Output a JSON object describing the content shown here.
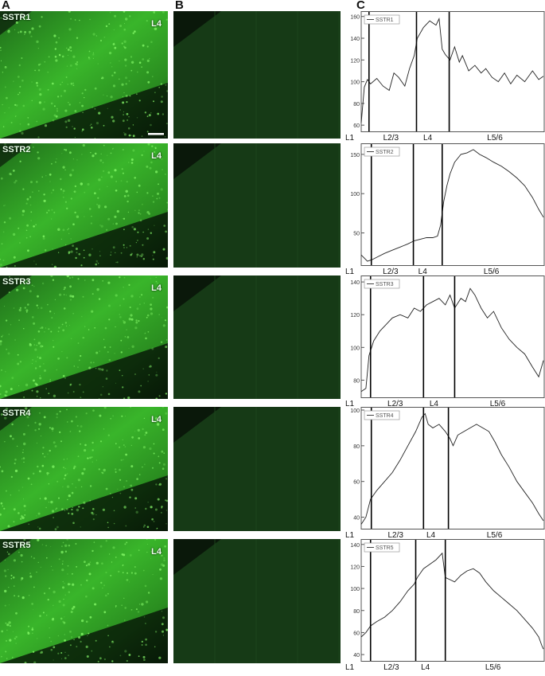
{
  "panel_labels": [
    "A",
    "B",
    "C"
  ],
  "layer_tag": "L4",
  "rows": [
    {
      "name": "SSTR1",
      "legend": "SSTR1",
      "ylim": [
        55,
        162
      ],
      "yticks": [
        60,
        80,
        100,
        120,
        140,
        160
      ],
      "layers": [
        "L1",
        "L2/3",
        "L4",
        "L5/6"
      ]
    },
    {
      "name": "SSTR2",
      "legend": "SSTR2",
      "ylim": [
        10,
        160
      ],
      "yticks": [
        50,
        100,
        150
      ],
      "layers": [
        "L1",
        "L2/3",
        "L4",
        "L5/6"
      ]
    },
    {
      "name": "SSTR3",
      "legend": "SSTR3",
      "ylim": [
        70,
        142
      ],
      "yticks": [
        80,
        100,
        120,
        140
      ],
      "layers": [
        "L1",
        "L2/3",
        "L4",
        "L5/6"
      ]
    },
    {
      "name": "SSTR4",
      "legend": "SSTR4",
      "ylim": [
        34,
        100
      ],
      "yticks": [
        40,
        60,
        80,
        100
      ],
      "layers": [
        "L1",
        "L2/3",
        "L4",
        "L5/6"
      ]
    },
    {
      "name": "SSTR5",
      "legend": "SSTR5",
      "ylim": [
        35,
        142
      ],
      "yticks": [
        40,
        60,
        80,
        100,
        120,
        140
      ],
      "layers": [
        "L1",
        "L2/3",
        "L4",
        "L5/6"
      ]
    }
  ],
  "chart_data": [
    {
      "type": "line",
      "series": [
        {
          "name": "SSTR1",
          "x": [
            0,
            4,
            8,
            12,
            20,
            28,
            36,
            42,
            48,
            56,
            62,
            68,
            72,
            80,
            88,
            96,
            100,
            104,
            108,
            114,
            120,
            126,
            130,
            138,
            146,
            154,
            160,
            168,
            176,
            184,
            192,
            200,
            210,
            220,
            228,
            234
          ],
          "values": [
            62,
            95,
            102,
            98,
            103,
            96,
            92,
            108,
            104,
            96,
            112,
            124,
            140,
            150,
            156,
            152,
            158,
            130,
            125,
            120,
            132,
            118,
            124,
            110,
            115,
            108,
            112,
            104,
            100,
            108,
            98,
            106,
            100,
            110,
            102,
            105
          ]
        }
      ],
      "boundaries_x": [
        10,
        71,
        113
      ],
      "xlim": [
        0,
        235
      ]
    },
    {
      "type": "line",
      "series": [
        {
          "name": "SSTR2",
          "x": [
            0,
            8,
            14,
            22,
            30,
            40,
            50,
            60,
            68,
            76,
            84,
            92,
            98,
            102,
            106,
            110,
            114,
            120,
            128,
            136,
            144,
            152,
            160,
            170,
            180,
            190,
            200,
            210,
            220,
            228,
            234
          ],
          "values": [
            22,
            14,
            16,
            20,
            24,
            28,
            32,
            36,
            40,
            42,
            44,
            44,
            46,
            60,
            90,
            110,
            125,
            140,
            150,
            152,
            156,
            150,
            146,
            140,
            135,
            128,
            120,
            110,
            95,
            80,
            70
          ]
        }
      ],
      "boundaries_x": [
        13,
        67,
        104
      ],
      "xlim": [
        0,
        235
      ]
    },
    {
      "type": "line",
      "series": [
        {
          "name": "SSTR3",
          "x": [
            0,
            6,
            10,
            16,
            24,
            32,
            40,
            50,
            60,
            68,
            76,
            84,
            92,
            100,
            108,
            114,
            120,
            128,
            134,
            140,
            146,
            154,
            162,
            170,
            180,
            190,
            200,
            210,
            220,
            228,
            234
          ],
          "values": [
            73,
            75,
            95,
            104,
            110,
            114,
            118,
            120,
            118,
            124,
            122,
            126,
            128,
            130,
            126,
            132,
            124,
            130,
            128,
            136,
            132,
            124,
            118,
            122,
            112,
            105,
            100,
            96,
            88,
            82,
            92
          ]
        }
      ],
      "boundaries_x": [
        12,
        80,
        120
      ],
      "xlim": [
        0,
        235
      ]
    },
    {
      "type": "line",
      "series": [
        {
          "name": "SSTR4",
          "x": [
            0,
            6,
            12,
            20,
            30,
            40,
            50,
            60,
            70,
            78,
            82,
            86,
            92,
            100,
            108,
            114,
            118,
            124,
            132,
            140,
            148,
            156,
            164,
            172,
            180,
            190,
            200,
            210,
            220,
            228,
            234
          ],
          "values": [
            36,
            40,
            50,
            55,
            60,
            65,
            72,
            80,
            88,
            96,
            98,
            92,
            90,
            92,
            88,
            84,
            80,
            86,
            88,
            90,
            92,
            90,
            88,
            82,
            75,
            68,
            60,
            54,
            48,
            42,
            38
          ]
        }
      ],
      "boundaries_x": [
        13,
        80,
        112
      ],
      "xlim": [
        0,
        235
      ]
    },
    {
      "type": "line",
      "series": [
        {
          "name": "SSTR5",
          "x": [
            0,
            6,
            12,
            20,
            30,
            40,
            50,
            60,
            68,
            72,
            80,
            88,
            96,
            104,
            108,
            114,
            120,
            128,
            136,
            144,
            152,
            160,
            170,
            180,
            190,
            200,
            210,
            220,
            228,
            232,
            234
          ],
          "values": [
            56,
            60,
            66,
            70,
            74,
            80,
            88,
            98,
            104,
            110,
            118,
            122,
            126,
            132,
            110,
            108,
            106,
            112,
            116,
            118,
            114,
            106,
            98,
            92,
            86,
            80,
            72,
            64,
            56,
            48,
            45
          ]
        }
      ],
      "boundaries_x": [
        12,
        70,
        108
      ],
      "xlim": [
        0,
        235
      ]
    }
  ]
}
